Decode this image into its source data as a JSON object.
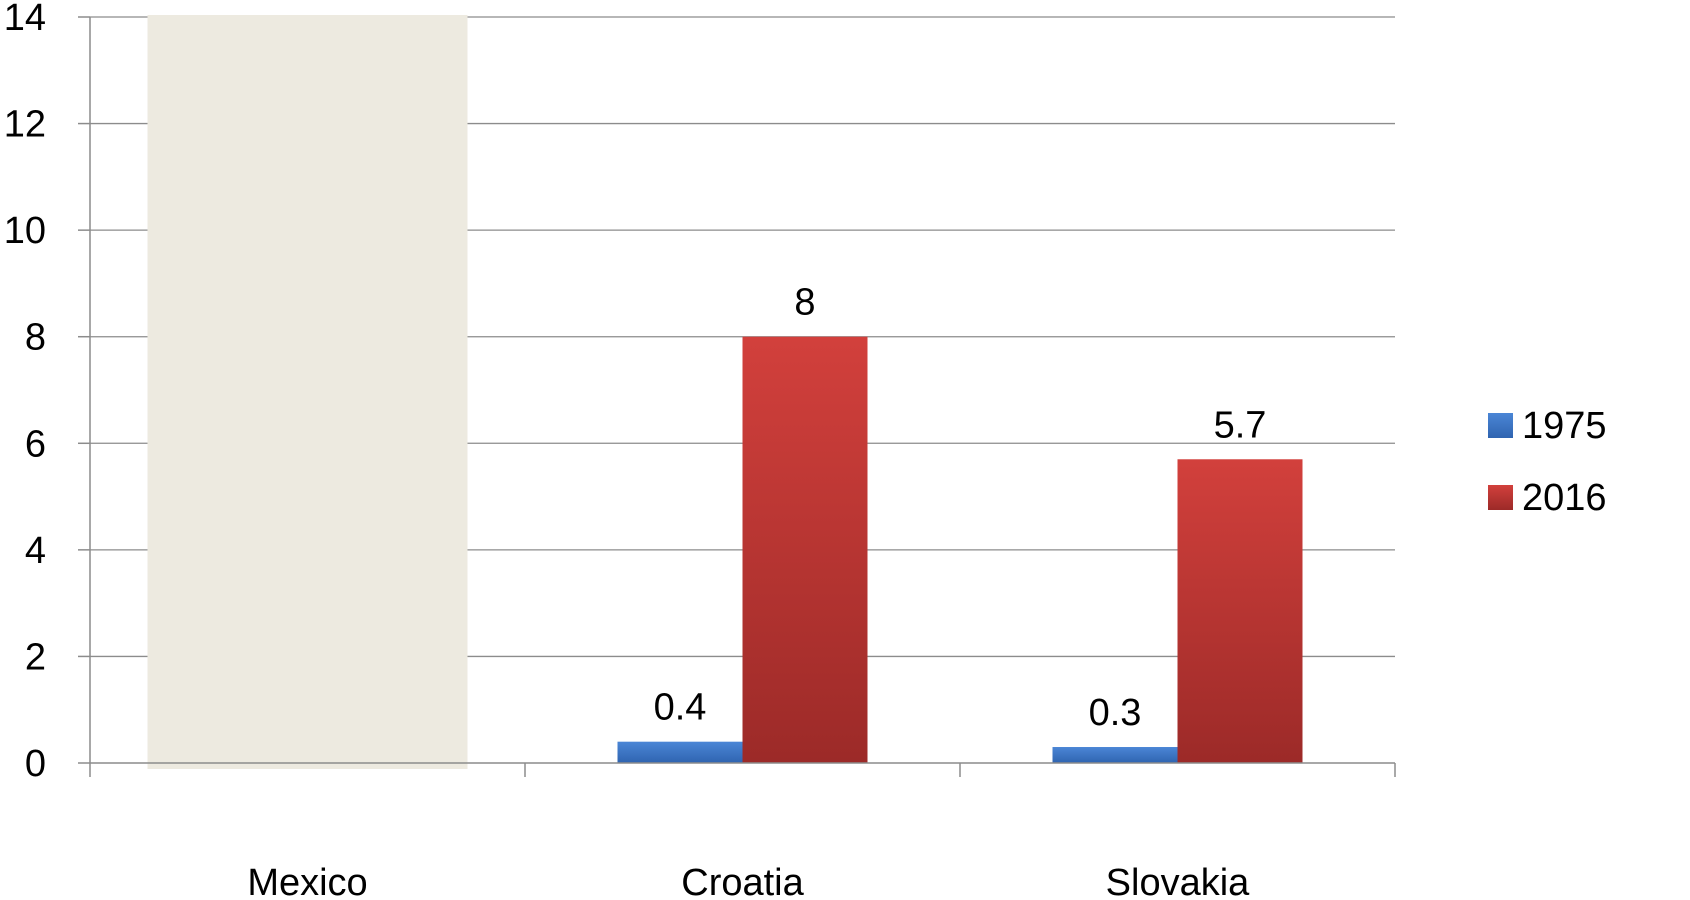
{
  "chart_data": {
    "type": "bar",
    "categories": [
      "Mexico",
      "Croatia",
      "Slovakia"
    ],
    "series": [
      {
        "name": "1975",
        "values": [
          null,
          0.4,
          0.3
        ],
        "labels": [
          "",
          "0.4",
          "0.3"
        ],
        "color": "#3a74c4"
      },
      {
        "name": "2016",
        "values": [
          null,
          8,
          5.7
        ],
        "labels": [
          "",
          "8",
          "5.7"
        ],
        "color": "#c23a37"
      }
    ],
    "ylim": [
      0,
      14
    ],
    "yticks": [
      0,
      2,
      4,
      6,
      8,
      10,
      12,
      14
    ],
    "grid": true,
    "legend": "right",
    "masked_category": "Mexico",
    "mask_color": "#edeae0"
  }
}
